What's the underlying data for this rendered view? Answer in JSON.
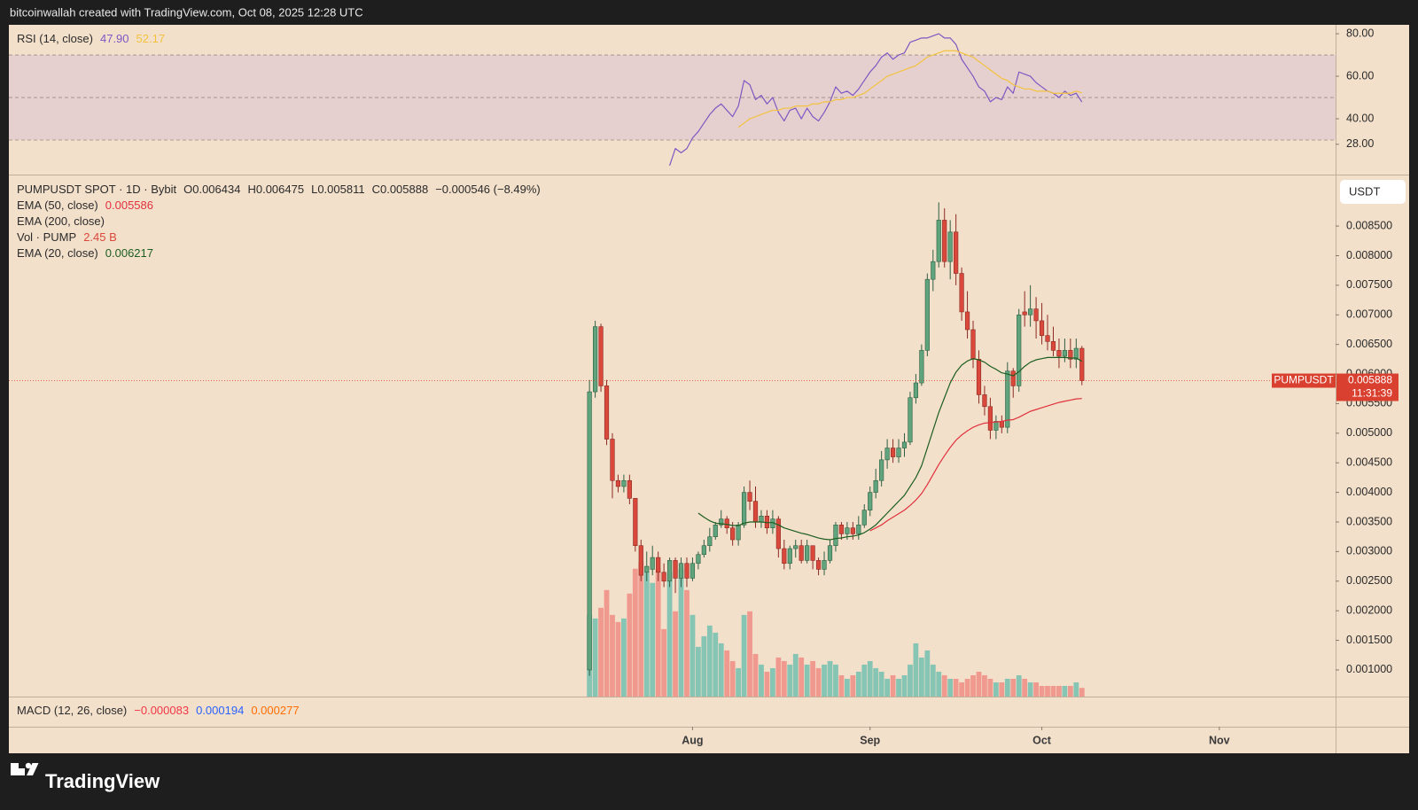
{
  "header": {
    "attribution": "bitcoinwallah created with TradingView.com, Oct 08, 2025 12:28 UTC"
  },
  "footer": {
    "brand": "TradingView"
  },
  "chart_data": [
    {
      "type": "line",
      "title": "RSI (14, close)",
      "ylim": [
        13.75,
        84.2
      ],
      "yticks": [
        {
          "value": 80,
          "label": "80.00"
        },
        {
          "value": 60,
          "label": "60.00"
        },
        {
          "value": 40,
          "label": "40.00"
        },
        {
          "value": 28,
          "label": "28.00"
        }
      ],
      "levels": [
        30,
        50,
        70
      ],
      "band_color": "#e6d0cf",
      "grid": false,
      "series": [
        {
          "color": "#7e57c2",
          "legend_value": "47.90",
          "values": [
            null,
            null,
            null,
            null,
            null,
            null,
            null,
            null,
            null,
            null,
            null,
            null,
            null,
            null,
            18,
            26,
            24,
            26,
            31,
            34,
            38,
            42,
            45,
            47,
            44,
            41,
            46,
            58,
            56,
            49,
            51,
            47,
            50,
            43,
            39,
            44,
            45,
            40,
            45,
            41,
            39,
            43,
            48,
            55,
            52,
            53,
            51,
            54,
            58,
            62,
            65,
            69,
            71,
            68,
            70,
            71,
            76,
            77,
            78,
            78,
            79,
            80,
            78,
            78,
            75,
            68,
            64,
            60,
            55,
            53,
            48,
            50,
            49,
            55,
            52,
            62,
            61,
            60,
            57,
            55,
            53,
            52,
            50,
            53,
            51,
            52,
            47.9
          ]
        },
        {
          "color": "#f2c23e",
          "legend_value": "52.17",
          "values": [
            null,
            null,
            null,
            null,
            null,
            null,
            null,
            null,
            null,
            null,
            null,
            null,
            null,
            null,
            null,
            null,
            null,
            null,
            null,
            null,
            null,
            null,
            null,
            null,
            null,
            null,
            36,
            38,
            40,
            41,
            42,
            43,
            44,
            44,
            45,
            45,
            46,
            46,
            46,
            47,
            47,
            48,
            48,
            49,
            49,
            50,
            50,
            51,
            52,
            54,
            56,
            58,
            60,
            61,
            62,
            63,
            64,
            65,
            67,
            69,
            70,
            71,
            72,
            72,
            72,
            71,
            70,
            69,
            67,
            65,
            63,
            61,
            59,
            58,
            56,
            55,
            54,
            54,
            53,
            53,
            53,
            52,
            52,
            52,
            52,
            53,
            52.17
          ]
        }
      ]
    },
    {
      "type": "candlestick",
      "title": "PUMPUSDT SPOT · 1D · Bybit",
      "ohlc_legend": [
        {
          "label": "O",
          "value": 0.006434
        },
        {
          "label": "H",
          "value": 0.006475
        },
        {
          "label": "L",
          "value": 0.005811
        },
        {
          "label": "C",
          "value": 0.005888
        }
      ],
      "change": "−0.000546 (−8.49%)",
      "currency": "USDT",
      "xlim": [
        -101.4,
        130.3
      ],
      "xticks": [
        {
          "value": 18,
          "label": "Aug"
        },
        {
          "value": 49,
          "label": "Sep"
        },
        {
          "value": 79,
          "label": "Oct"
        },
        {
          "value": 110,
          "label": "Nov"
        }
      ],
      "ylim": [
        0.00055,
        0.00937
      ],
      "yticks": [
        {
          "value": 0.001,
          "label": "0.001000"
        },
        {
          "value": 0.0015,
          "label": "0.001500"
        },
        {
          "value": 0.002,
          "label": "0.002000"
        },
        {
          "value": 0.0025,
          "label": "0.002500"
        },
        {
          "value": 0.003,
          "label": "0.003000"
        },
        {
          "value": 0.0035,
          "label": "0.003500"
        },
        {
          "value": 0.004,
          "label": "0.004000"
        },
        {
          "value": 0.0045,
          "label": "0.004500"
        },
        {
          "value": 0.005,
          "label": "0.005000"
        },
        {
          "value": 0.0055,
          "label": "0.005500"
        },
        {
          "value": 0.006,
          "label": "0.006000"
        },
        {
          "value": 0.0065,
          "label": "0.006500"
        },
        {
          "value": 0.007,
          "label": "0.007000"
        },
        {
          "value": 0.0075,
          "label": "0.007500"
        },
        {
          "value": 0.008,
          "label": "0.008000"
        },
        {
          "value": 0.0085,
          "label": "0.008500"
        }
      ],
      "grid": false,
      "up_color": "#5fa47c",
      "down_color": "#d9483b",
      "open": [
        0.001,
        0.0057,
        0.0068,
        0.0058,
        0.0049,
        0.0042,
        0.0041,
        0.0042,
        0.0039,
        0.0031,
        0.00265,
        0.0027,
        0.0029,
        0.00265,
        0.0025,
        0.00285,
        0.00255,
        0.0028,
        0.00255,
        0.0028,
        0.00295,
        0.0031,
        0.00325,
        0.00345,
        0.00355,
        0.0034,
        0.0032,
        0.00345,
        0.004,
        0.00385,
        0.0035,
        0.0036,
        0.0034,
        0.00355,
        0.00305,
        0.0028,
        0.00305,
        0.0031,
        0.00285,
        0.0031,
        0.00285,
        0.0027,
        0.00285,
        0.0031,
        0.00345,
        0.0033,
        0.0034,
        0.0033,
        0.00345,
        0.0037,
        0.004,
        0.0042,
        0.00455,
        0.00475,
        0.0046,
        0.00475,
        0.00485,
        0.0056,
        0.00585,
        0.0064,
        0.0076,
        0.0079,
        0.0086,
        0.0079,
        0.0084,
        0.0077,
        0.00705,
        0.00675,
        0.00625,
        0.00565,
        0.00545,
        0.00505,
        0.0052,
        0.0051,
        0.00605,
        0.0058,
        0.00705,
        0.007,
        0.0071,
        0.0069,
        0.00665,
        0.00655,
        0.0064,
        0.0063,
        0.0064,
        0.00625,
        0.006434
      ],
      "high": [
        0.0059,
        0.0069,
        0.00685,
        0.0059,
        0.005,
        0.0043,
        0.0043,
        0.0043,
        0.0039,
        0.0032,
        0.003,
        0.0031,
        0.003,
        0.0028,
        0.0029,
        0.0029,
        0.0029,
        0.0029,
        0.0029,
        0.003,
        0.0032,
        0.0034,
        0.0035,
        0.0037,
        0.0036,
        0.0035,
        0.0035,
        0.0041,
        0.0042,
        0.0041,
        0.0037,
        0.0037,
        0.0037,
        0.0036,
        0.0032,
        0.0031,
        0.0032,
        0.0032,
        0.0032,
        0.0031,
        0.0029,
        0.003,
        0.0032,
        0.0035,
        0.0035,
        0.0035,
        0.0035,
        0.0036,
        0.0038,
        0.0041,
        0.0044,
        0.0047,
        0.0049,
        0.0049,
        0.0049,
        0.005,
        0.0057,
        0.006,
        0.0065,
        0.0077,
        0.0081,
        0.0089,
        0.0088,
        0.0086,
        0.0087,
        0.0078,
        0.0074,
        0.0069,
        0.0064,
        0.0058,
        0.0056,
        0.0053,
        0.0053,
        0.0062,
        0.0061,
        0.0071,
        0.0074,
        0.0075,
        0.0073,
        0.0072,
        0.007,
        0.0068,
        0.0066,
        0.0066,
        0.0066,
        0.0066,
        0.006475
      ],
      "low": [
        0.0009,
        0.0056,
        0.0057,
        0.0048,
        0.0039,
        0.004,
        0.004,
        0.0038,
        0.003,
        0.0025,
        0.0025,
        0.0026,
        0.0025,
        0.0024,
        0.0024,
        0.0023,
        0.0024,
        0.0024,
        0.0025,
        0.0027,
        0.0029,
        0.003,
        0.0032,
        0.0034,
        0.0033,
        0.0031,
        0.0031,
        0.0034,
        0.0037,
        0.0034,
        0.0034,
        0.0033,
        0.0033,
        0.0029,
        0.0027,
        0.0027,
        0.0029,
        0.0028,
        0.0028,
        0.0027,
        0.0026,
        0.0026,
        0.0028,
        0.003,
        0.0032,
        0.0032,
        0.0032,
        0.0032,
        0.0034,
        0.0036,
        0.0039,
        0.0041,
        0.0044,
        0.0045,
        0.0045,
        0.0046,
        0.0048,
        0.0055,
        0.0058,
        0.0063,
        0.0074,
        0.0078,
        0.0078,
        0.0076,
        0.0075,
        0.0069,
        0.0066,
        0.0061,
        0.0055,
        0.0053,
        0.0049,
        0.0049,
        0.005,
        0.005,
        0.0056,
        0.0057,
        0.0068,
        0.0068,
        0.0066,
        0.0065,
        0.0064,
        0.0063,
        0.0061,
        0.0062,
        0.0061,
        0.0061,
        0.005811
      ],
      "close": [
        0.0057,
        0.0068,
        0.0058,
        0.0049,
        0.0042,
        0.0041,
        0.0042,
        0.0039,
        0.0031,
        0.0026,
        0.00275,
        0.0029,
        0.00265,
        0.0025,
        0.00285,
        0.00255,
        0.0028,
        0.00255,
        0.0028,
        0.00295,
        0.0031,
        0.00325,
        0.00345,
        0.00355,
        0.0034,
        0.0032,
        0.00345,
        0.004,
        0.00385,
        0.0035,
        0.0036,
        0.0034,
        0.00355,
        0.00305,
        0.0028,
        0.00305,
        0.0031,
        0.00285,
        0.0031,
        0.00285,
        0.0027,
        0.00285,
        0.0031,
        0.00345,
        0.0033,
        0.0034,
        0.0033,
        0.00345,
        0.0037,
        0.004,
        0.0042,
        0.00455,
        0.00475,
        0.0046,
        0.00475,
        0.00485,
        0.0056,
        0.00585,
        0.0064,
        0.0076,
        0.0079,
        0.0086,
        0.0079,
        0.0084,
        0.0077,
        0.00705,
        0.00675,
        0.00625,
        0.00565,
        0.00545,
        0.00505,
        0.0052,
        0.0051,
        0.00605,
        0.0058,
        0.007,
        0.007,
        0.0071,
        0.0069,
        0.00665,
        0.00655,
        0.0064,
        0.0063,
        0.0064,
        0.00625,
        0.006434,
        0.005888
      ],
      "series": [
        {
          "type": "line",
          "name": "EMA (50, close)",
          "color": "#e0313d",
          "legend_value": 0.005586,
          "values": [
            null,
            null,
            null,
            null,
            null,
            null,
            null,
            null,
            null,
            null,
            null,
            null,
            null,
            null,
            null,
            null,
            null,
            null,
            null,
            null,
            null,
            null,
            null,
            null,
            null,
            null,
            null,
            null,
            null,
            null,
            null,
            null,
            null,
            null,
            null,
            null,
            null,
            null,
            null,
            null,
            null,
            null,
            null,
            null,
            null,
            null,
            null,
            null,
            null,
            0.00335,
            0.0034,
            0.00345,
            0.00352,
            0.00358,
            0.00364,
            0.0037,
            0.00378,
            0.00387,
            0.00398,
            0.00413,
            0.0043,
            0.00447,
            0.00462,
            0.00476,
            0.00488,
            0.00497,
            0.00504,
            0.0051,
            0.00514,
            0.00517,
            0.00518,
            0.00519,
            0.0052,
            0.00522,
            0.00523,
            0.00527,
            0.00532,
            0.00537,
            0.0054,
            0.00543,
            0.00546,
            0.00549,
            0.00552,
            0.00554,
            0.00556,
            0.00558,
            0.005586
          ]
        },
        {
          "type": "line",
          "name": "EMA (200, close)",
          "color": "#2962ff"
        },
        {
          "type": "volume",
          "name": "Vol · PUMP",
          "legend_value": "2.45 B",
          "ylim": [
            0,
            147
          ],
          "up_color": "#86c4b4",
          "down_color": "#f0998e",
          "values": [
            23,
            22,
            25,
            30,
            23,
            21,
            22,
            29,
            36,
            38,
            35,
            32,
            36,
            19,
            35,
            24,
            36,
            30,
            23,
            14,
            17,
            20,
            18,
            15,
            13,
            10,
            8,
            23,
            24,
            12,
            9,
            7,
            8,
            11,
            10,
            9,
            12,
            11,
            9,
            10,
            8,
            9,
            10,
            9,
            6,
            5,
            6,
            7,
            9,
            10,
            8,
            7,
            5,
            6,
            5,
            6,
            9,
            15,
            11,
            13,
            9,
            7,
            6,
            5,
            5,
            4,
            5,
            6,
            7,
            6,
            5,
            4,
            4,
            5,
            5,
            6,
            5,
            4,
            4,
            3,
            3,
            3,
            3,
            3,
            3,
            4,
            2.45
          ]
        },
        {
          "type": "line",
          "name": "EMA (20, close)",
          "color": "#1b5e20",
          "legend_value": 0.006217,
          "values": [
            null,
            null,
            null,
            null,
            null,
            null,
            null,
            null,
            null,
            null,
            null,
            null,
            null,
            null,
            null,
            null,
            null,
            null,
            null,
            0.00365,
            0.00358,
            0.00352,
            0.00348,
            0.00347,
            0.00346,
            0.00344,
            0.00344,
            0.00348,
            0.0035,
            0.0035,
            0.0035,
            0.00349,
            0.00349,
            0.00345,
            0.0034,
            0.00337,
            0.00334,
            0.00331,
            0.00329,
            0.00326,
            0.00323,
            0.00321,
            0.0032,
            0.00322,
            0.00323,
            0.00325,
            0.00326,
            0.00328,
            0.00332,
            0.00338,
            0.00345,
            0.00355,
            0.00365,
            0.00375,
            0.00385,
            0.00395,
            0.0041,
            0.00425,
            0.00445,
            0.00475,
            0.00505,
            0.00535,
            0.0056,
            0.00585,
            0.00603,
            0.00615,
            0.00622,
            0.00626,
            0.00624,
            0.0062,
            0.00613,
            0.00608,
            0.00602,
            0.006,
            0.00597,
            0.00604,
            0.00613,
            0.0062,
            0.00624,
            0.00626,
            0.00628,
            0.00628,
            0.00628,
            0.00628,
            0.00627,
            0.00627,
            0.006217
          ]
        }
      ],
      "last": {
        "symbol": "PUMPUSDT",
        "price": 0.005888,
        "countdown": "11:31:39",
        "color": "#d9402f"
      }
    },
    {
      "type": "macd",
      "title": "MACD (12, 26, close)",
      "legend_values": [
        {
          "label": "−0.000083",
          "color": "#f23645"
        },
        {
          "label": "0.000194",
          "color": "#2962ff"
        },
        {
          "label": "0.000277",
          "color": "#ff6d00"
        }
      ]
    }
  ]
}
